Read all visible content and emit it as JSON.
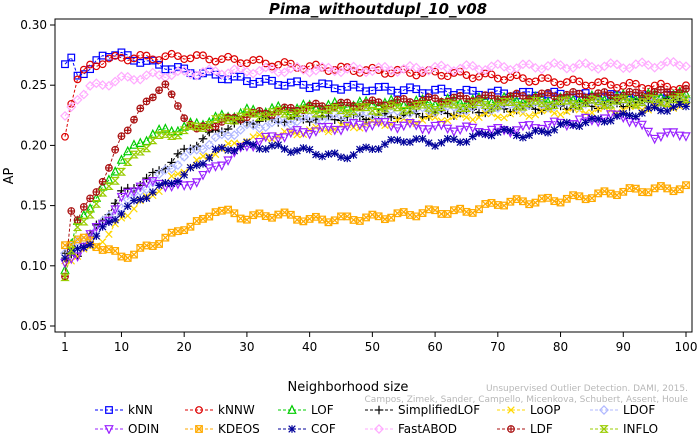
{
  "chart_data": {
    "type": "line",
    "title": "Pima_withoutdupl_10_v08",
    "xlabel": "Neighborhood size",
    "ylabel": "AP",
    "xlim": [
      1,
      100
    ],
    "ylim": [
      0.05,
      0.3
    ],
    "x_ticks": [
      1,
      10,
      20,
      30,
      40,
      50,
      60,
      70,
      80,
      90,
      100
    ],
    "y_ticks": [
      0.05,
      0.1,
      0.15,
      0.2,
      0.25,
      0.3
    ],
    "x_tick_labels": [
      "1",
      "10",
      "20",
      "30",
      "40",
      "50",
      "60",
      "70",
      "80",
      "90",
      "100"
    ],
    "y_tick_labels": [
      "0.05",
      "0.10",
      "0.15",
      "0.20",
      "0.25",
      "0.30"
    ],
    "grid": false,
    "legend_position": "bottom",
    "watermark_line1": "Unsupervised Outlier Detection. DAMI, 2015.",
    "watermark_line2": "Campos, Zimek, Sander, Campello, Micenkova, Schubert, Assent, Houle",
    "series": [
      {
        "name": "kNN",
        "color": "#0000ff",
        "marker": "square",
        "x": [
          1,
          2,
          3,
          5,
          7,
          8,
          10,
          12,
          15,
          20,
          25,
          30,
          40,
          50,
          60,
          70,
          80,
          90,
          100
        ],
        "y": [
          0.265,
          0.272,
          0.26,
          0.262,
          0.275,
          0.276,
          0.275,
          0.272,
          0.268,
          0.262,
          0.258,
          0.254,
          0.25,
          0.247,
          0.245,
          0.243,
          0.242,
          0.24,
          0.24
        ]
      },
      {
        "name": "kNNW",
        "color": "#dd0000",
        "marker": "circle",
        "x": [
          1,
          2,
          3,
          5,
          8,
          10,
          15,
          20,
          25,
          30,
          40,
          50,
          60,
          70,
          80,
          90,
          100
        ],
        "y": [
          0.208,
          0.237,
          0.255,
          0.266,
          0.271,
          0.273,
          0.273,
          0.274,
          0.272,
          0.27,
          0.265,
          0.262,
          0.26,
          0.257,
          0.253,
          0.25,
          0.248
        ]
      },
      {
        "name": "LOF",
        "color": "#00cc00",
        "marker": "triangle-up",
        "x": [
          1,
          3,
          5,
          8,
          10,
          15,
          20,
          25,
          30,
          40,
          50,
          60,
          70,
          80,
          90,
          100
        ],
        "y": [
          0.098,
          0.135,
          0.15,
          0.17,
          0.19,
          0.21,
          0.215,
          0.222,
          0.228,
          0.232,
          0.235,
          0.236,
          0.238,
          0.238,
          0.24,
          0.242
        ]
      },
      {
        "name": "SimplifiedLOF",
        "color": "#000000",
        "marker": "plus",
        "x": [
          1,
          3,
          5,
          8,
          10,
          15,
          20,
          25,
          30,
          40,
          50,
          60,
          70,
          80,
          90,
          100
        ],
        "y": [
          0.108,
          0.11,
          0.125,
          0.145,
          0.16,
          0.175,
          0.195,
          0.212,
          0.22,
          0.222,
          0.224,
          0.226,
          0.23,
          0.232,
          0.234,
          0.238
        ]
      },
      {
        "name": "LoOP",
        "color": "#ffd700",
        "marker": "x",
        "x": [
          1,
          3,
          5,
          8,
          10,
          15,
          20,
          25,
          30,
          40,
          50,
          60,
          70,
          80,
          90,
          100
        ],
        "y": [
          0.105,
          0.108,
          0.115,
          0.125,
          0.14,
          0.16,
          0.18,
          0.195,
          0.205,
          0.212,
          0.218,
          0.222,
          0.225,
          0.228,
          0.23,
          0.234
        ]
      },
      {
        "name": "LDOF",
        "color": "#b0b8ff",
        "marker": "diamond",
        "x": [
          1,
          3,
          5,
          8,
          10,
          15,
          20,
          25,
          30,
          40,
          50,
          60,
          70,
          80,
          90,
          100
        ],
        "y": [
          0.112,
          0.118,
          0.125,
          0.14,
          0.15,
          0.17,
          0.19,
          0.205,
          0.215,
          0.222,
          0.226,
          0.23,
          0.232,
          0.234,
          0.236,
          0.238
        ]
      },
      {
        "name": "ODIN",
        "color": "#9922ff",
        "marker": "triangle-down",
        "x": [
          1,
          3,
          5,
          8,
          10,
          13,
          17,
          20,
          25,
          30,
          35,
          40,
          50,
          60,
          70,
          80,
          90,
          95,
          100
        ],
        "y": [
          0.1,
          0.11,
          0.125,
          0.14,
          0.155,
          0.168,
          0.168,
          0.165,
          0.182,
          0.2,
          0.208,
          0.212,
          0.218,
          0.215,
          0.212,
          0.218,
          0.225,
          0.208,
          0.21
        ]
      },
      {
        "name": "KDEOS",
        "color": "#ffaa00",
        "marker": "square-x",
        "x": [
          1,
          3,
          5,
          7,
          9,
          10,
          12,
          15,
          18,
          20,
          23,
          25,
          30,
          35,
          40,
          50,
          60,
          65,
          70,
          80,
          85,
          90,
          100
        ],
        "y": [
          0.118,
          0.122,
          0.12,
          0.115,
          0.11,
          0.108,
          0.11,
          0.118,
          0.125,
          0.132,
          0.137,
          0.147,
          0.14,
          0.143,
          0.138,
          0.14,
          0.145,
          0.145,
          0.152,
          0.155,
          0.158,
          0.162,
          0.165
        ]
      },
      {
        "name": "COF",
        "color": "#000099",
        "marker": "asterisk",
        "x": [
          1,
          3,
          5,
          8,
          10,
          15,
          20,
          25,
          30,
          35,
          40,
          45,
          50,
          55,
          60,
          65,
          70,
          75,
          80,
          85,
          90,
          95,
          100
        ],
        "y": [
          0.108,
          0.112,
          0.12,
          0.135,
          0.145,
          0.162,
          0.175,
          0.195,
          0.2,
          0.198,
          0.195,
          0.19,
          0.198,
          0.205,
          0.202,
          0.205,
          0.212,
          0.208,
          0.216,
          0.22,
          0.224,
          0.23,
          0.232
        ]
      },
      {
        "name": "FastABOD",
        "color": "#ffaaff",
        "marker": "diamond",
        "x": [
          1,
          3,
          5,
          8,
          10,
          15,
          20,
          30,
          40,
          50,
          60,
          70,
          80,
          90,
          100
        ],
        "y": [
          0.222,
          0.24,
          0.248,
          0.252,
          0.255,
          0.258,
          0.26,
          0.262,
          0.263,
          0.263,
          0.264,
          0.265,
          0.266,
          0.266,
          0.268
        ]
      },
      {
        "name": "LDF",
        "color": "#aa1111",
        "marker": "circle-plus",
        "x": [
          1,
          2,
          3,
          5,
          8,
          10,
          12,
          14,
          16,
          17,
          18,
          20,
          22,
          25,
          30,
          40,
          50,
          60,
          70,
          80,
          90,
          100
        ],
        "y": [
          0.092,
          0.148,
          0.138,
          0.155,
          0.18,
          0.208,
          0.222,
          0.235,
          0.248,
          0.25,
          0.24,
          0.225,
          0.212,
          0.218,
          0.225,
          0.232,
          0.235,
          0.238,
          0.24,
          0.242,
          0.242,
          0.245
        ]
      },
      {
        "name": "INFLO",
        "color": "#99cc00",
        "marker": "hourglass",
        "x": [
          1,
          3,
          5,
          8,
          10,
          15,
          20,
          25,
          30,
          40,
          50,
          60,
          70,
          80,
          90,
          100
        ],
        "y": [
          0.092,
          0.13,
          0.145,
          0.165,
          0.18,
          0.205,
          0.212,
          0.22,
          0.225,
          0.228,
          0.23,
          0.232,
          0.234,
          0.235,
          0.236,
          0.238
        ]
      }
    ]
  }
}
